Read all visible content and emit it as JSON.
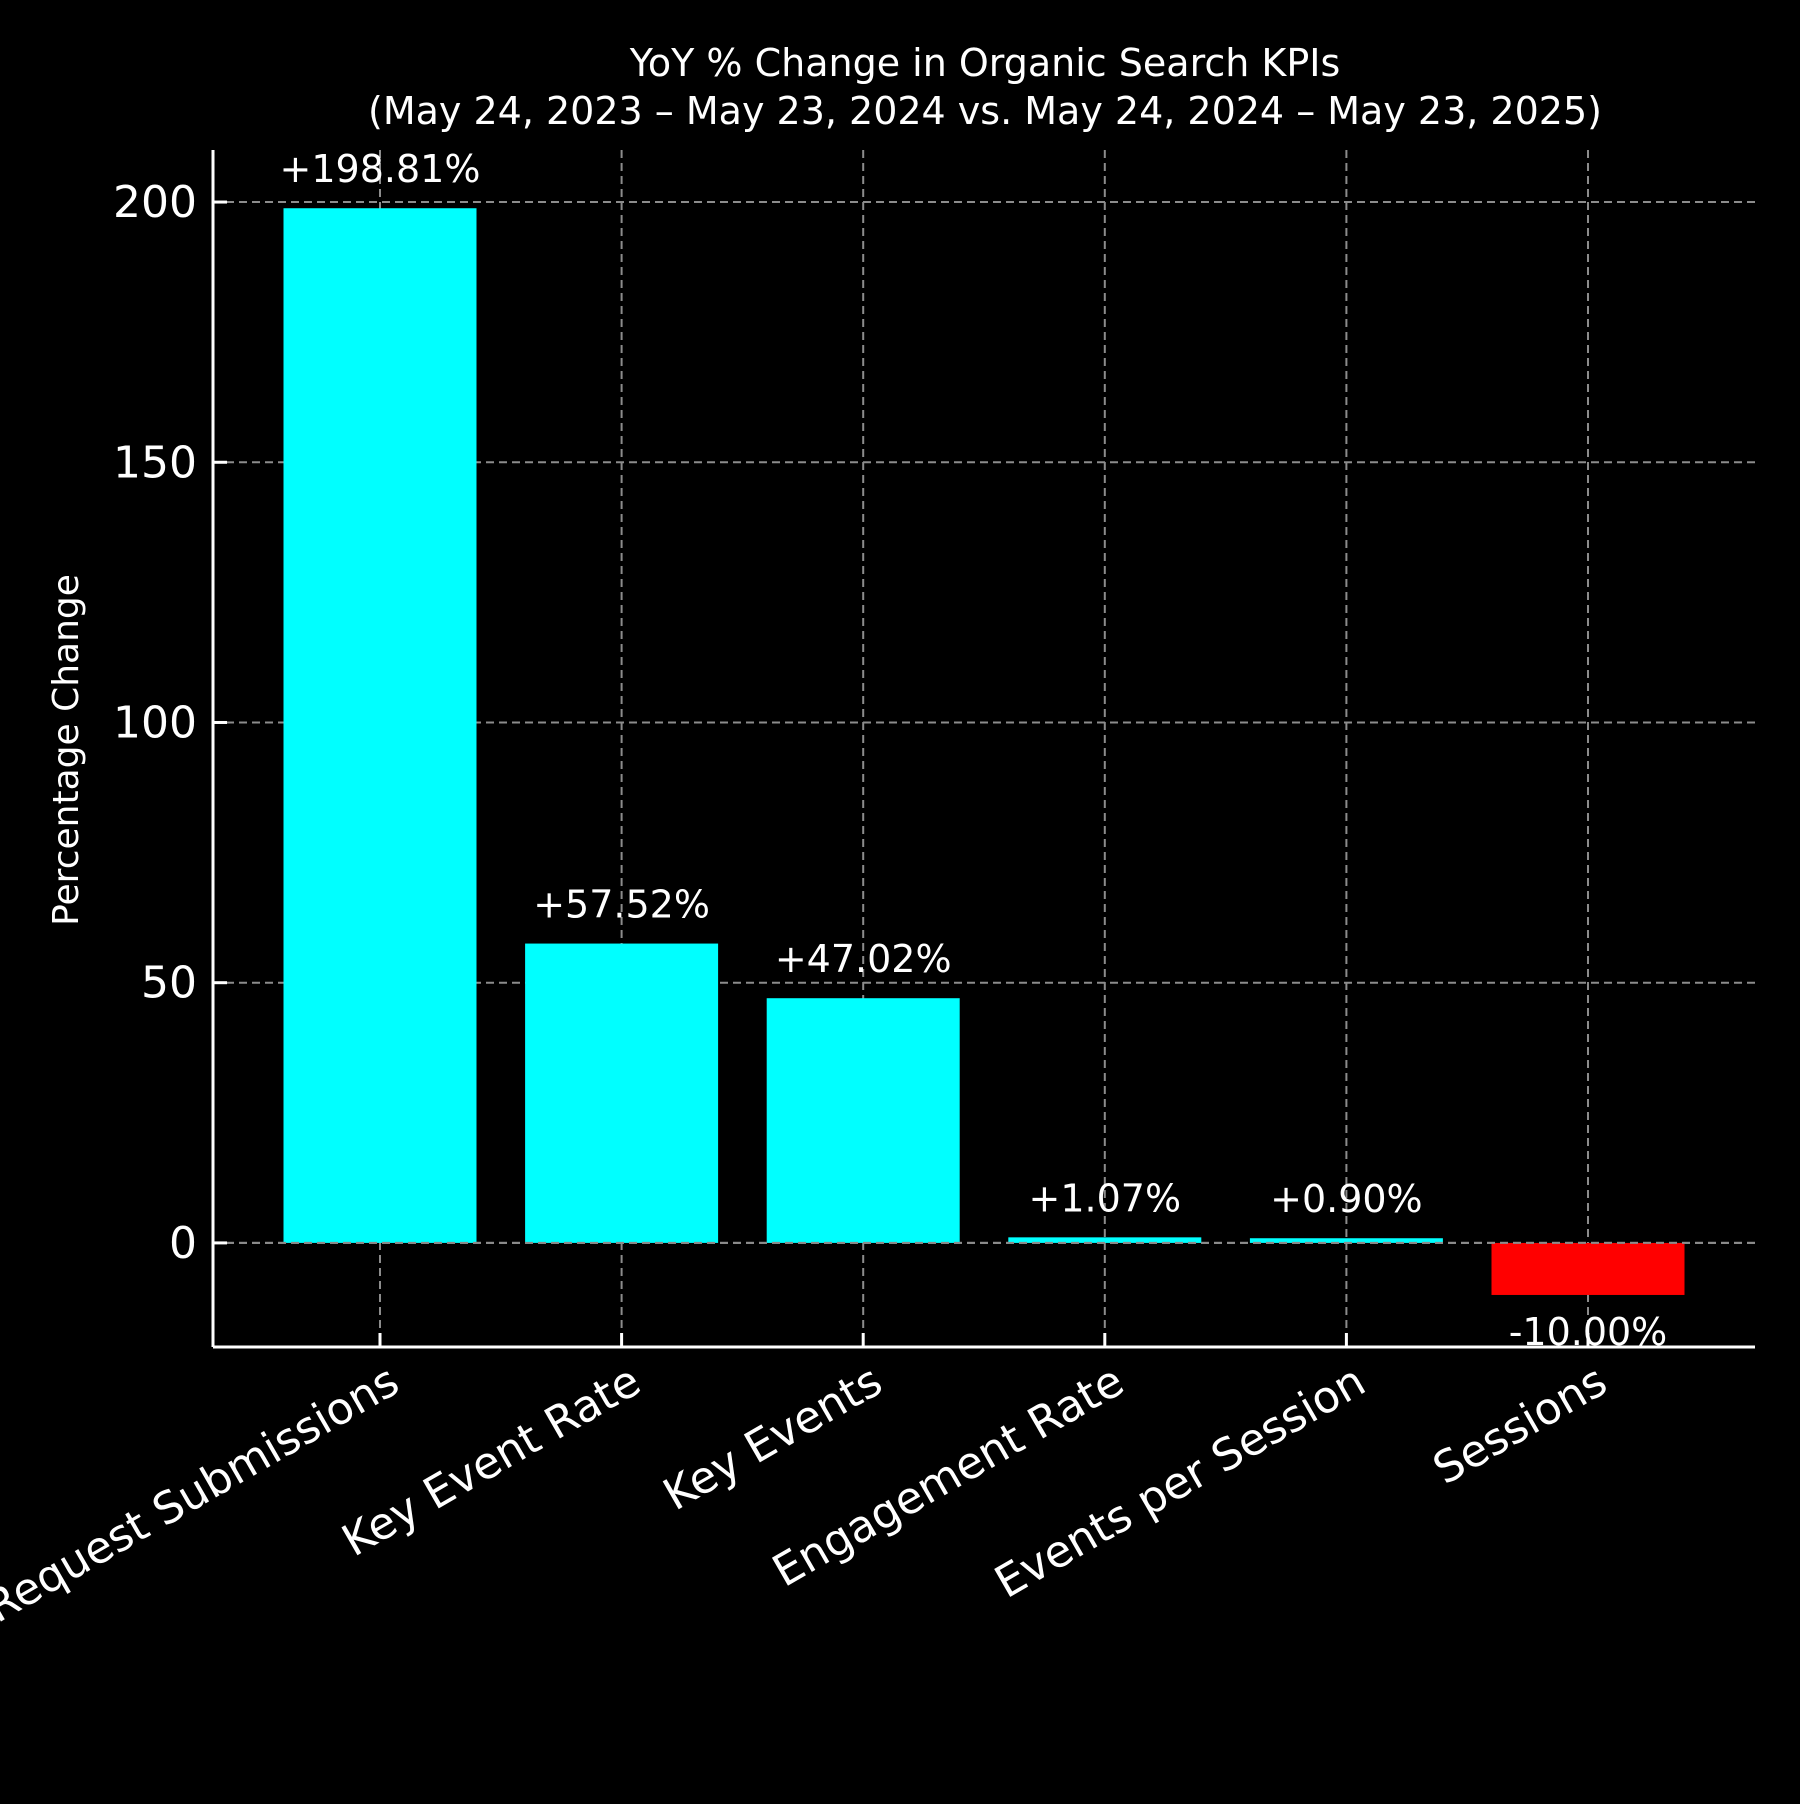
{
  "chart_data": {
    "type": "bar",
    "title": "YoY % Change in Organic Search KPIs",
    "subtitle": "(May 24, 2023 – May 23, 2024 vs. May 24, 2024 – May 23, 2025)",
    "xlabel": "",
    "ylabel": "Percentage Change",
    "categories": [
      "Quote Request Submissions",
      "Key Event Rate",
      "Key Events",
      "Engagement Rate",
      "Events per Session",
      "Sessions"
    ],
    "values": [
      198.81,
      57.52,
      47.02,
      1.07,
      0.9,
      -10.0
    ],
    "value_labels": [
      "+198.81%",
      "+57.52%",
      "+47.02%",
      "+1.07%",
      "+0.90%",
      "-10.00%"
    ],
    "ylim": [
      -20,
      210
    ],
    "yticks": [
      0,
      50,
      100,
      150,
      200
    ],
    "ytick_labels": [
      "0",
      "50",
      "100",
      "150",
      "200"
    ],
    "grid": true,
    "legend": "none",
    "colors": {
      "positive": "#00ffff",
      "negative": "#ff0000",
      "background": "#000000",
      "text": "#ffffff",
      "grid": "#8c8c8c"
    }
  }
}
